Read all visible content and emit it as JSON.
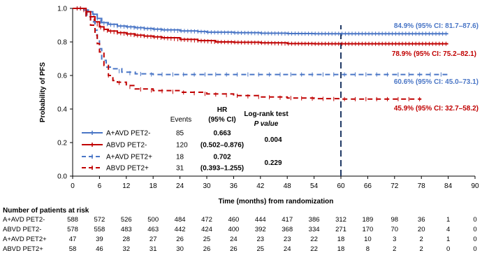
{
  "chart_data": {
    "type": "line",
    "ylabel": "Probability of PFS",
    "xlabel": "Time (months) from randomization",
    "xlim": [
      0,
      90
    ],
    "ylim": [
      0,
      1.0
    ],
    "xticks": [
      0,
      6,
      12,
      18,
      24,
      30,
      36,
      42,
      48,
      54,
      60,
      66,
      72,
      78,
      84,
      90
    ],
    "yticks": [
      "0.0",
      "0.2",
      "0.4",
      "0.6",
      "0.8",
      "1.0"
    ],
    "grid": false,
    "reference_line_x": 60,
    "series": [
      {
        "name": "A+AVD PET2-",
        "color": "#4a76c6",
        "dash": false,
        "events": "85",
        "annotation": "84.9% (95% CI: 81.7–87.6)",
        "points": [
          [
            0,
            1.0
          ],
          [
            2,
            1.0
          ],
          [
            2.5,
            0.99
          ],
          [
            3.5,
            0.98
          ],
          [
            4.5,
            0.965
          ],
          [
            5.5,
            0.94
          ],
          [
            6.5,
            0.915
          ],
          [
            8,
            0.905
          ],
          [
            10,
            0.895
          ],
          [
            12,
            0.89
          ],
          [
            14,
            0.885
          ],
          [
            16,
            0.88
          ],
          [
            18,
            0.876
          ],
          [
            20,
            0.872
          ],
          [
            24,
            0.866
          ],
          [
            28,
            0.862
          ],
          [
            30,
            0.858
          ],
          [
            36,
            0.855
          ],
          [
            42,
            0.852
          ],
          [
            48,
            0.85
          ],
          [
            54,
            0.849
          ],
          [
            60,
            0.849
          ],
          [
            90,
            0.849
          ]
        ],
        "end": 84
      },
      {
        "name": "ABVD PET2-",
        "color": "#c00000",
        "dash": false,
        "events": "120",
        "annotation": "78.9% (95% CI: 75.2–82.1)",
        "points": [
          [
            0,
            1.0
          ],
          [
            2,
            1.0
          ],
          [
            3,
            0.98
          ],
          [
            4,
            0.95
          ],
          [
            5,
            0.92
          ],
          [
            6,
            0.89
          ],
          [
            7,
            0.875
          ],
          [
            8,
            0.865
          ],
          [
            10,
            0.855
          ],
          [
            12,
            0.848
          ],
          [
            14,
            0.84
          ],
          [
            16,
            0.835
          ],
          [
            18,
            0.83
          ],
          [
            20,
            0.825
          ],
          [
            24,
            0.815
          ],
          [
            28,
            0.808
          ],
          [
            32,
            0.8
          ],
          [
            36,
            0.798
          ],
          [
            42,
            0.795
          ],
          [
            48,
            0.79
          ],
          [
            54,
            0.789
          ],
          [
            60,
            0.789
          ],
          [
            90,
            0.789
          ]
        ],
        "end": 84
      },
      {
        "name": "A+AVD PET2+",
        "color": "#4a76c6",
        "dash": true,
        "events": "18",
        "annotation": "60.6% (95% CI: 45.0–73.1)",
        "points": [
          [
            0,
            1.0
          ],
          [
            2,
            1.0
          ],
          [
            3,
            0.96
          ],
          [
            4,
            0.92
          ],
          [
            5,
            0.87
          ],
          [
            5.5,
            0.81
          ],
          [
            6,
            0.76
          ],
          [
            6.5,
            0.69
          ],
          [
            7.5,
            0.65
          ],
          [
            9,
            0.64
          ],
          [
            11,
            0.62
          ],
          [
            14,
            0.61
          ],
          [
            18,
            0.606
          ],
          [
            90,
            0.606
          ]
        ],
        "end": 84
      },
      {
        "name": "ABVD PET2+",
        "color": "#c00000",
        "dash": true,
        "events": "31",
        "annotation": "45.9% (95% CI: 32.7–58.2)",
        "points": [
          [
            0,
            1.0
          ],
          [
            2,
            1.0
          ],
          [
            3,
            0.95
          ],
          [
            4,
            0.9
          ],
          [
            5,
            0.84
          ],
          [
            5.5,
            0.79
          ],
          [
            6,
            0.74
          ],
          [
            7,
            0.66
          ],
          [
            8,
            0.6
          ],
          [
            9,
            0.57
          ],
          [
            10,
            0.56
          ],
          [
            12,
            0.54
          ],
          [
            14,
            0.52
          ],
          [
            18,
            0.51
          ],
          [
            24,
            0.5
          ],
          [
            30,
            0.49
          ],
          [
            36,
            0.48
          ],
          [
            42,
            0.472
          ],
          [
            48,
            0.466
          ],
          [
            54,
            0.462
          ],
          [
            60,
            0.459
          ],
          [
            90,
            0.459
          ]
        ],
        "end": 78
      }
    ]
  },
  "table_header": {
    "events": "Events",
    "hr_line1": "HR",
    "hr_line2": "(95% CI)",
    "lr_line1": "Log-rank test",
    "lr_line2": "P value"
  },
  "stats": {
    "pet2_neg": {
      "hr": "0.663",
      "ci": "(0.502–0.876)",
      "p": "0.004"
    },
    "pet2_pos": {
      "hr": "0.702",
      "ci": "(0.393–1.255)",
      "p": "0.229"
    }
  },
  "risk_table": {
    "title": "Number of patients at risk",
    "rows": [
      {
        "label": "A+AVD PET2-",
        "values": [
          "588",
          "572",
          "526",
          "500",
          "484",
          "472",
          "460",
          "444",
          "417",
          "386",
          "312",
          "189",
          "98",
          "36",
          "1",
          "0"
        ]
      },
      {
        "label": "ABVD PET2-",
        "values": [
          "578",
          "558",
          "483",
          "463",
          "442",
          "424",
          "400",
          "392",
          "368",
          "334",
          "271",
          "170",
          "70",
          "20",
          "4",
          "0"
        ]
      },
      {
        "label": "A+AVD PET2+",
        "values": [
          "47",
          "39",
          "28",
          "27",
          "26",
          "25",
          "24",
          "23",
          "23",
          "22",
          "18",
          "10",
          "3",
          "2",
          "1",
          "0"
        ]
      },
      {
        "label": "ABVD PET2+",
        "values": [
          "58",
          "46",
          "32",
          "31",
          "30",
          "26",
          "26",
          "25",
          "24",
          "22",
          "18",
          "8",
          "2",
          "2",
          "0",
          "0"
        ]
      }
    ]
  }
}
